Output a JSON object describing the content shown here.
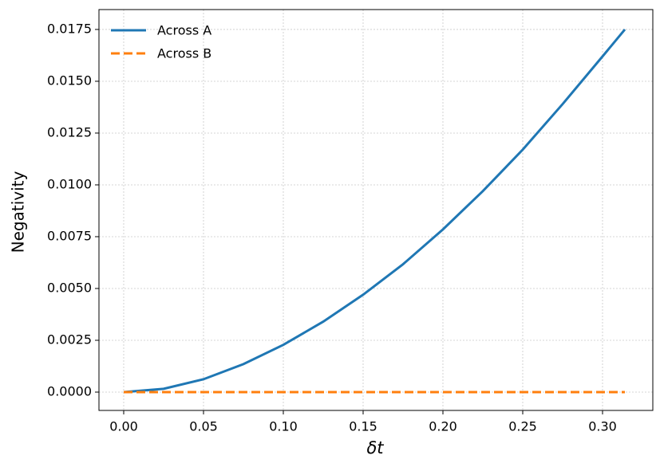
{
  "chart_data": {
    "type": "line",
    "xlabel": "δt",
    "ylabel": "Negativity",
    "x": [
      0,
      0.025,
      0.05,
      0.075,
      0.1,
      0.125,
      0.15,
      0.175,
      0.2,
      0.225,
      0.25,
      0.275,
      0.3,
      0.314
    ],
    "series": [
      {
        "name": "Across A",
        "color": "#1f77b4",
        "dash": "solid",
        "values": [
          0,
          0.00016,
          0.00062,
          0.00135,
          0.00228,
          0.0034,
          0.0047,
          0.00617,
          0.00785,
          0.0097,
          0.0117,
          0.0139,
          0.0162,
          0.0175
        ]
      },
      {
        "name": "Across B",
        "color": "#ff7f0e",
        "dash": "dashed",
        "values": [
          0,
          0,
          0,
          0,
          0,
          0,
          0,
          0,
          0,
          0,
          0,
          0,
          0,
          0
        ]
      }
    ],
    "xlim": [
      -0.0155,
      0.3315
    ],
    "ylim": [
      -0.000885,
      0.01846
    ],
    "xticks": [
      {
        "value": 0,
        "label": "0.00"
      },
      {
        "value": 0.05,
        "label": "0.05"
      },
      {
        "value": 0.1,
        "label": "0.10"
      },
      {
        "value": 0.15,
        "label": "0.15"
      },
      {
        "value": 0.2,
        "label": "0.20"
      },
      {
        "value": 0.25,
        "label": "0.25"
      },
      {
        "value": 0.3,
        "label": "0.30"
      }
    ],
    "yticks": [
      {
        "value": 0,
        "label": "0.0000"
      },
      {
        "value": 0.0025,
        "label": "0.0025"
      },
      {
        "value": 0.005,
        "label": "0.0050"
      },
      {
        "value": 0.0075,
        "label": "0.0075"
      },
      {
        "value": 0.01,
        "label": "0.0100"
      },
      {
        "value": 0.0125,
        "label": "0.0125"
      },
      {
        "value": 0.015,
        "label": "0.0150"
      },
      {
        "value": 0.0175,
        "label": "0.0175"
      }
    ],
    "grid": true,
    "legend": "upper-left"
  }
}
